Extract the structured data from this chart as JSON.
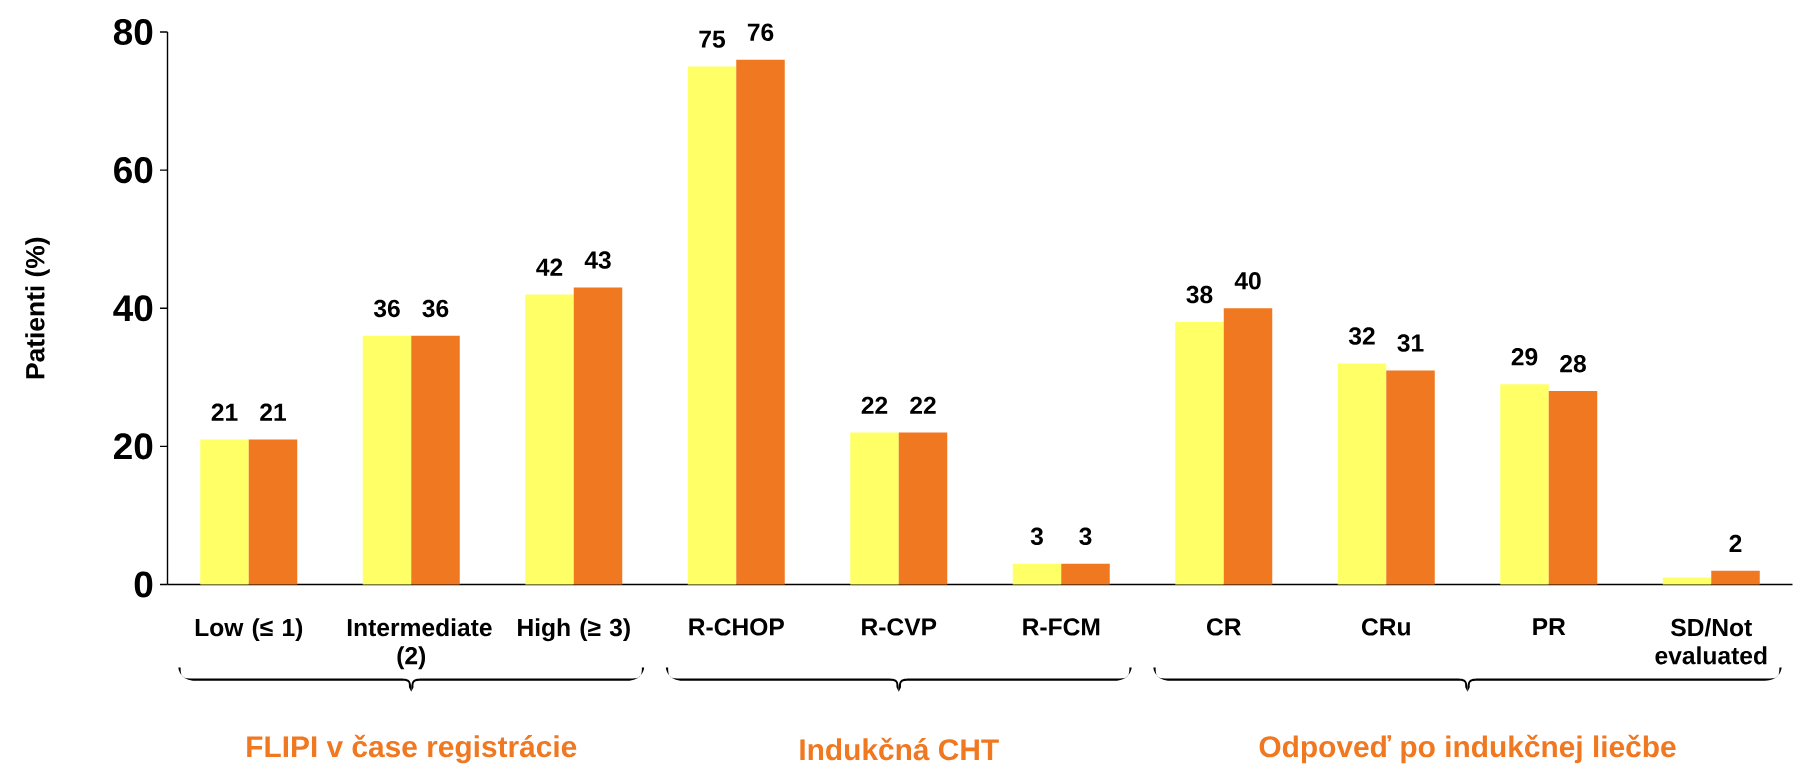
{
  "chart_data": {
    "type": "bar",
    "ylabel": "Patienti (%)",
    "categories": [
      "Low (≤ 1)",
      "Intermediate (2)",
      "High (≥ 3)",
      "R-CHOP",
      "R-CVP",
      "R-FCM",
      "CR",
      "CRu",
      "PR",
      "SD/Not evaluated"
    ],
    "series": [
      {
        "color": "#ffff66",
        "values": [
          21,
          36,
          42,
          75,
          22,
          3,
          38,
          32,
          29,
          1
        ],
        "value_labels": [
          "21",
          "36",
          "42",
          "75",
          "22",
          "3",
          "38",
          "32",
          "29",
          null
        ]
      },
      {
        "color": "#f07820",
        "values": [
          21,
          36,
          43,
          76,
          22,
          3,
          40,
          31,
          28,
          2
        ],
        "value_labels": [
          "21",
          "36",
          "43",
          "76",
          "22",
          "3",
          "40",
          "31",
          "28",
          "2"
        ]
      }
    ],
    "ylim": [
      0,
      80
    ],
    "yticks": [
      0,
      20,
      40,
      60,
      80
    ],
    "annotations": [
      "FLIPI v čase registrácie",
      "Indukčná CHT",
      "Odpoveď po indukčnej liečbe"
    ]
  }
}
